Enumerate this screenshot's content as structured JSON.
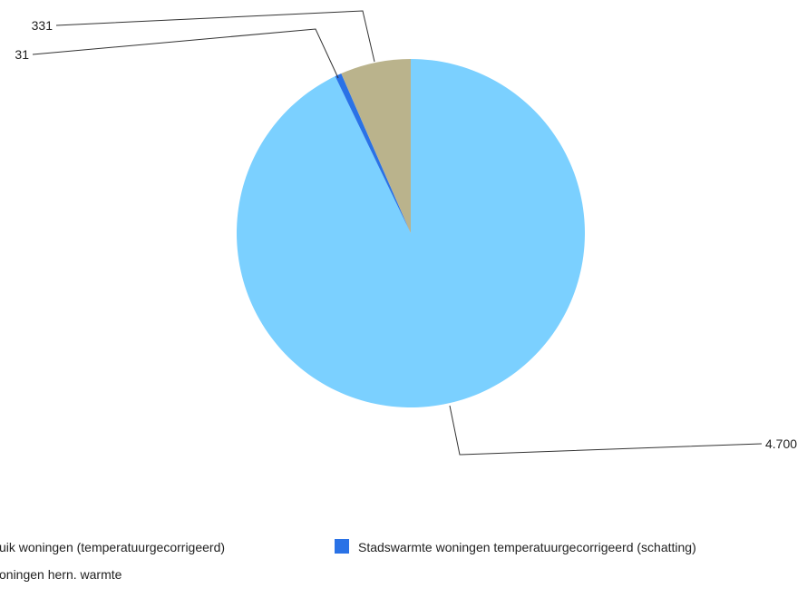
{
  "chart_data": {
    "type": "pie",
    "title": "",
    "slices": [
      {
        "label": "Gasgebruik woningen (temperatuurgecorrigeerd)",
        "value": 4700,
        "display": "4.700",
        "color": "#7bd0ff"
      },
      {
        "label": "Stadswarmte woningen temperatuurgecorrigeerd (schatting)",
        "value": 31,
        "display": "31",
        "color": "#2a72e6"
      },
      {
        "label": "Woningen hern. warmte",
        "value": 331,
        "display": "331",
        "color": "#bab38c"
      }
    ],
    "legend_visible": {
      "item1": "uik woningen (temperatuurgecorrigeerd)",
      "item2": "Stadswarmte woningen temperatuurgecorrigeerd (schatting)",
      "item3": "oningen hern. warmte"
    },
    "legend_position": "bottom"
  }
}
